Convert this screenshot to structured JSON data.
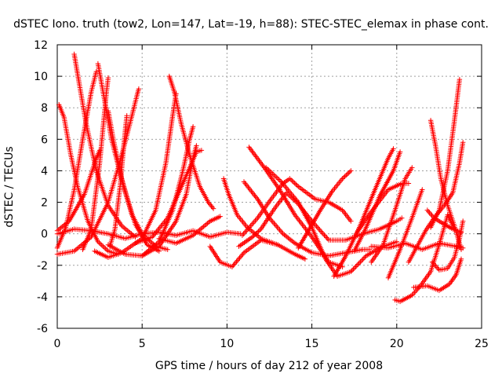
{
  "colors": {
    "series": "#ff0000",
    "grid": "#a0a0a0",
    "axis": "#000000",
    "background": "#ffffff"
  },
  "chart_data": {
    "type": "scatter",
    "marker": "plus",
    "title": "dSTEC Iono. truth (tow2, Lon=147, Lat=-19, h=88): STEC-STEC_elemax in phase cont.",
    "xlabel": "GPS time / hours of day 212 of year 2008",
    "ylabel": "dSTEC  / TECUs",
    "xlim": [
      0,
      25
    ],
    "ylim": [
      -6,
      12
    ],
    "xticks": [
      0,
      5,
      10,
      15,
      20,
      25
    ],
    "yticks": [
      -6,
      -4,
      -2,
      0,
      2,
      4,
      6,
      8,
      10,
      12
    ],
    "grid": true,
    "legend": "none",
    "series": [
      {
        "points": [
          [
            0.0,
            -0.9
          ],
          [
            0.5,
            0.4
          ],
          [
            1.0,
            2.8
          ],
          [
            1.5,
            6.0
          ],
          [
            2.0,
            9.0
          ],
          [
            2.3,
            10.3
          ]
        ]
      },
      {
        "points": [
          [
            0.1,
            8.2
          ],
          [
            0.4,
            7.4
          ],
          [
            0.8,
            5.0
          ],
          [
            1.2,
            3.0
          ],
          [
            1.8,
            0.8
          ],
          [
            2.4,
            -0.5
          ],
          [
            3.0,
            -1.1
          ],
          [
            3.6,
            -1.3
          ]
        ]
      },
      {
        "points": [
          [
            1.0,
            11.4
          ],
          [
            1.3,
            9.5
          ],
          [
            1.7,
            7.0
          ],
          [
            2.3,
            4.0
          ],
          [
            3.0,
            1.8
          ],
          [
            3.8,
            0.5
          ],
          [
            4.6,
            -0.2
          ]
        ]
      },
      {
        "points": [
          [
            0.0,
            0.2
          ],
          [
            0.7,
            0.8
          ],
          [
            1.6,
            2.5
          ],
          [
            2.3,
            4.8
          ],
          [
            2.5,
            5.3
          ]
        ]
      },
      {
        "points": [
          [
            1.5,
            -1.0
          ],
          [
            2.0,
            0.3
          ],
          [
            2.5,
            4.5
          ],
          [
            2.9,
            9.0
          ],
          [
            3.0,
            9.9
          ]
        ]
      },
      {
        "points": [
          [
            2.4,
            10.8
          ],
          [
            2.7,
            9.0
          ],
          [
            3.2,
            6.0
          ],
          [
            3.9,
            3.0
          ],
          [
            4.6,
            0.6
          ],
          [
            5.3,
            -0.7
          ],
          [
            6.0,
            -1.1
          ]
        ]
      },
      {
        "points": [
          [
            0.0,
            -1.3
          ],
          [
            1.0,
            -1.1
          ],
          [
            2.0,
            -0.2
          ],
          [
            3.0,
            2.0
          ],
          [
            3.8,
            5.0
          ],
          [
            4.4,
            7.5
          ],
          [
            4.7,
            8.8
          ],
          [
            4.8,
            9.2
          ]
        ]
      },
      {
        "points": [
          [
            3.1,
            -0.8
          ],
          [
            3.4,
            0.3
          ],
          [
            3.7,
            3.0
          ],
          [
            4.0,
            6.5
          ],
          [
            4.1,
            7.5
          ]
        ]
      },
      {
        "points": [
          [
            3.0,
            7.8
          ],
          [
            3.3,
            6.0
          ],
          [
            3.8,
            3.5
          ],
          [
            4.4,
            1.2
          ],
          [
            5.0,
            0.0
          ],
          [
            5.8,
            -0.8
          ],
          [
            6.5,
            -1.0
          ]
        ]
      },
      {
        "points": [
          [
            2.2,
            -1.1
          ],
          [
            3.0,
            -1.5
          ],
          [
            3.8,
            -1.2
          ],
          [
            5.0,
            -0.3
          ],
          [
            5.8,
            1.5
          ],
          [
            6.4,
            4.5
          ],
          [
            6.8,
            7.5
          ],
          [
            7.0,
            8.9
          ]
        ]
      },
      {
        "points": [
          [
            6.6,
            10.0
          ],
          [
            6.9,
            9.0
          ],
          [
            7.3,
            7.0
          ],
          [
            7.8,
            5.0
          ],
          [
            8.4,
            3.0
          ],
          [
            8.9,
            2.0
          ],
          [
            9.2,
            1.6
          ]
        ]
      },
      {
        "points": [
          [
            3.0,
            -0.7
          ],
          [
            4.0,
            -1.3
          ],
          [
            5.0,
            -1.4
          ],
          [
            6.0,
            -0.5
          ],
          [
            6.8,
            1.5
          ],
          [
            7.4,
            4.0
          ],
          [
            7.8,
            6.0
          ],
          [
            8.0,
            6.8
          ]
        ]
      },
      {
        "points": [
          [
            4.6,
            -0.6
          ],
          [
            5.6,
            -0.2
          ],
          [
            6.5,
            1.0
          ],
          [
            7.4,
            3.2
          ],
          [
            8.2,
            5.2
          ],
          [
            8.5,
            5.3
          ]
        ]
      },
      {
        "points": [
          [
            5.0,
            -1.4
          ],
          [
            6.0,
            -0.8
          ],
          [
            7.0,
            0.8
          ],
          [
            7.6,
            2.5
          ],
          [
            8.0,
            4.8
          ],
          [
            8.2,
            5.6
          ]
        ]
      },
      {
        "points": [
          [
            0.0,
            0.0
          ],
          [
            1.0,
            0.3
          ],
          [
            2.0,
            0.2
          ],
          [
            3.0,
            0.0
          ],
          [
            4.0,
            -0.3
          ],
          [
            5.0,
            0.0
          ],
          [
            6.0,
            0.1
          ],
          [
            7.0,
            -0.1
          ],
          [
            8.0,
            0.2
          ],
          [
            9.0,
            -0.2
          ],
          [
            10.0,
            0.1
          ],
          [
            10.8,
            0.0
          ]
        ]
      },
      {
        "points": [
          [
            6.0,
            -0.3
          ],
          [
            7.0,
            -0.6
          ],
          [
            8.0,
            -0.1
          ],
          [
            9.0,
            0.8
          ],
          [
            9.6,
            1.1
          ]
        ]
      },
      {
        "points": [
          [
            9.8,
            3.5
          ],
          [
            10.1,
            2.5
          ],
          [
            10.6,
            1.2
          ],
          [
            11.2,
            0.4
          ],
          [
            12.0,
            -0.3
          ],
          [
            13.0,
            -0.7
          ]
        ]
      },
      {
        "points": [
          [
            9.0,
            -0.8
          ],
          [
            9.6,
            -1.8
          ],
          [
            10.3,
            -2.1
          ],
          [
            11.0,
            -1.2
          ],
          [
            12.0,
            -0.4
          ],
          [
            13.0,
            -0.7
          ],
          [
            14.0,
            -1.3
          ],
          [
            14.6,
            -1.6
          ]
        ]
      },
      {
        "points": [
          [
            10.7,
            -0.8
          ],
          [
            11.5,
            -0.2
          ],
          [
            12.0,
            0.3
          ],
          [
            12.8,
            1.6
          ],
          [
            13.5,
            2.6
          ],
          [
            14.2,
            1.9
          ],
          [
            15.0,
            0.8
          ],
          [
            16.0,
            -0.4
          ],
          [
            17.0,
            -0.4
          ],
          [
            18.0,
            0.0
          ],
          [
            19.0,
            0.3
          ],
          [
            20.0,
            0.8
          ],
          [
            20.3,
            1.0
          ]
        ]
      },
      {
        "points": [
          [
            11.0,
            3.3
          ],
          [
            11.8,
            2.2
          ],
          [
            12.5,
            1.0
          ],
          [
            13.3,
            0.0
          ],
          [
            14.0,
            -0.6
          ],
          [
            15.0,
            -1.2
          ],
          [
            16.0,
            -1.4
          ],
          [
            17.0,
            -1.2
          ],
          [
            18.0,
            -1.0
          ],
          [
            18.4,
            -1.0
          ]
        ]
      },
      {
        "points": [
          [
            11.3,
            5.5
          ],
          [
            12.2,
            4.2
          ],
          [
            13.1,
            2.8
          ],
          [
            14.0,
            1.2
          ],
          [
            15.0,
            -0.2
          ],
          [
            16.0,
            -1.8
          ],
          [
            16.8,
            -2.1
          ]
        ]
      },
      {
        "points": [
          [
            10.9,
            -0.1
          ],
          [
            11.8,
            1.0
          ],
          [
            12.6,
            2.2
          ],
          [
            13.3,
            3.2
          ],
          [
            13.7,
            3.5
          ],
          [
            14.2,
            3.0
          ],
          [
            15.2,
            2.2
          ],
          [
            16.0,
            2.0
          ],
          [
            16.8,
            1.5
          ],
          [
            17.3,
            0.8
          ]
        ]
      },
      {
        "points": [
          [
            14.2,
            -0.9
          ],
          [
            14.8,
            0.2
          ],
          [
            15.5,
            1.5
          ],
          [
            16.2,
            2.7
          ],
          [
            16.8,
            3.5
          ],
          [
            17.3,
            4.0
          ]
        ]
      },
      {
        "points": [
          [
            12.3,
            4.2
          ],
          [
            13.2,
            3.3
          ],
          [
            14.2,
            2.0
          ],
          [
            15.0,
            0.4
          ],
          [
            15.8,
            -1.6
          ],
          [
            16.5,
            -2.7
          ],
          [
            17.3,
            -2.4
          ],
          [
            18.2,
            -1.4
          ],
          [
            19.0,
            -0.9
          ],
          [
            20.0,
            -0.5
          ]
        ]
      },
      {
        "points": [
          [
            16.3,
            -2.7
          ],
          [
            17.0,
            -1.4
          ],
          [
            17.8,
            0.4
          ],
          [
            18.6,
            2.5
          ],
          [
            19.5,
            4.8
          ],
          [
            19.8,
            5.4
          ]
        ]
      },
      {
        "points": [
          [
            17.5,
            -1.1
          ],
          [
            18.2,
            0.4
          ],
          [
            19.0,
            2.4
          ],
          [
            19.8,
            4.0
          ],
          [
            20.2,
            5.2
          ]
        ]
      },
      {
        "points": [
          [
            17.6,
            0.0
          ],
          [
            18.5,
            1.4
          ],
          [
            19.5,
            2.8
          ],
          [
            20.3,
            3.2
          ],
          [
            20.7,
            3.2
          ]
        ]
      },
      {
        "points": [
          [
            18.5,
            -1.8
          ],
          [
            19.2,
            -0.7
          ],
          [
            19.9,
            1.5
          ],
          [
            20.5,
            3.5
          ],
          [
            20.9,
            4.2
          ]
        ]
      },
      {
        "points": [
          [
            19.5,
            -2.8
          ],
          [
            20.2,
            -1.0
          ],
          [
            20.9,
            1.0
          ],
          [
            21.5,
            2.8
          ]
        ]
      },
      {
        "points": [
          [
            19.9,
            -4.2
          ],
          [
            20.2,
            -4.3
          ],
          [
            20.9,
            -3.9
          ],
          [
            21.4,
            -3.3
          ],
          [
            22.0,
            -2.4
          ],
          [
            22.5,
            -0.7
          ],
          [
            23.0,
            1.2
          ],
          [
            23.4,
            0.3
          ]
        ]
      },
      {
        "points": [
          [
            20.7,
            -1.8
          ],
          [
            21.2,
            -0.8
          ],
          [
            21.7,
            0.2
          ],
          [
            22.2,
            1.0
          ],
          [
            22.8,
            1.8
          ],
          [
            23.3,
            2.6
          ],
          [
            23.7,
            4.5
          ],
          [
            23.9,
            5.8
          ]
        ]
      },
      {
        "points": [
          [
            22.1,
            -1.8
          ],
          [
            22.5,
            -2.3
          ],
          [
            23.0,
            -2.2
          ],
          [
            23.4,
            -1.5
          ],
          [
            23.7,
            -0.3
          ],
          [
            23.9,
            0.8
          ]
        ]
      },
      {
        "points": [
          [
            21.0,
            -3.4
          ],
          [
            21.8,
            -3.3
          ],
          [
            22.5,
            -3.6
          ],
          [
            23.1,
            -3.2
          ],
          [
            23.5,
            -2.6
          ],
          [
            23.8,
            -1.6
          ]
        ]
      },
      {
        "points": [
          [
            22.0,
            7.2
          ],
          [
            22.3,
            5.5
          ],
          [
            22.6,
            3.5
          ],
          [
            23.0,
            1.8
          ],
          [
            23.4,
            0.5
          ],
          [
            23.8,
            -1.0
          ]
        ]
      },
      {
        "points": [
          [
            22.0,
            0.4
          ],
          [
            22.5,
            1.5
          ],
          [
            23.0,
            4.0
          ],
          [
            23.4,
            7.2
          ],
          [
            23.7,
            9.8
          ]
        ]
      },
      {
        "points": [
          [
            21.8,
            1.5
          ],
          [
            22.2,
            1.0
          ],
          [
            22.8,
            0.6
          ],
          [
            23.3,
            0.3
          ],
          [
            23.8,
            0.1
          ]
        ]
      },
      {
        "points": [
          [
            18.5,
            -0.8
          ],
          [
            19.5,
            -0.9
          ],
          [
            20.5,
            -0.6
          ],
          [
            21.5,
            -1.0
          ],
          [
            22.5,
            -0.6
          ],
          [
            23.5,
            -0.8
          ],
          [
            23.9,
            -0.9
          ]
        ]
      }
    ]
  }
}
